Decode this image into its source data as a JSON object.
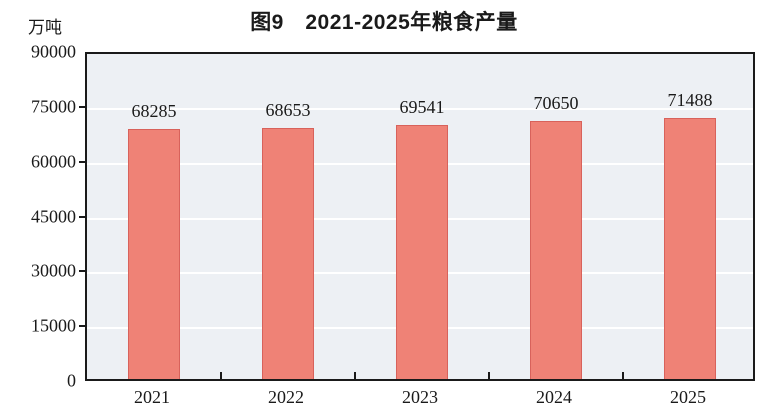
{
  "title": "图9　2021-2025年粮食产量",
  "unit_label": "万吨",
  "chart_data": {
    "type": "bar",
    "title": "图9　2021-2025年粮食产量",
    "categories": [
      "2021",
      "2022",
      "2023",
      "2024",
      "2025"
    ],
    "values": [
      68285,
      68653,
      69541,
      70650,
      71488
    ],
    "xlabel": "",
    "ylabel": "万吨",
    "ylim": [
      0,
      90000
    ],
    "yticks": [
      0,
      15000,
      30000,
      45000,
      60000,
      75000,
      90000
    ],
    "grid": true,
    "legend_position": "none",
    "colors": {
      "bar_fill": "#ef8276",
      "bar_border": "#d8625b",
      "plot_background": "#edf0f4",
      "gridline": "#ffffff",
      "frame": "#1a1a1a",
      "text": "#1a1a1a"
    }
  }
}
